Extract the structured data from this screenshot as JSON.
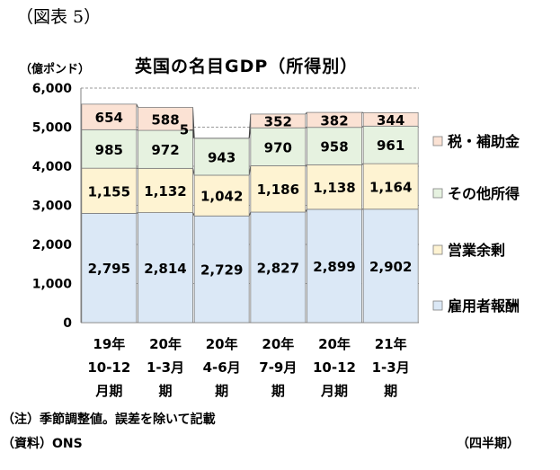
{
  "header": {
    "figure_label": "（図表 5）",
    "unit": "（億ポンド）",
    "title": "英国の名目GDP（所得別）"
  },
  "footer": {
    "note": "（注）季節調整値。誤差を除いて記載",
    "source": "（資料）ONS",
    "period": "（四半期）"
  },
  "chart_data": {
    "type": "bar",
    "stacked": true,
    "title": "英国の名目GDP（所得別）",
    "ylabel": "（億ポンド）",
    "ylim": [
      0,
      6000
    ],
    "yticks": [
      "0",
      "1,000",
      "2,000",
      "3,000",
      "4,000",
      "5,000",
      "6,000"
    ],
    "grid": true,
    "legend_position": "right",
    "categories": [
      [
        "19年",
        "10-12",
        "月期"
      ],
      [
        "20年",
        "1-3月",
        "期"
      ],
      [
        "20年",
        "4-6月",
        "期"
      ],
      [
        "20年",
        "7-9月",
        "期"
      ],
      [
        "20年",
        "10-12",
        "月期"
      ],
      [
        "21年",
        "1-3月",
        "期"
      ]
    ],
    "series": [
      {
        "name": "雇用者報酬",
        "color": "#dbe8f6",
        "values": [
          2795,
          2814,
          2729,
          2827,
          2899,
          2902
        ],
        "labels": [
          "2,795",
          "2,814",
          "2,729",
          "2,827",
          "2,899",
          "2,902"
        ]
      },
      {
        "name": "営業余剰",
        "color": "#fef3d2",
        "values": [
          1155,
          1132,
          1042,
          1186,
          1138,
          1164
        ],
        "labels": [
          "1,155",
          "1,132",
          "1,042",
          "1,186",
          "1,138",
          "1,164"
        ]
      },
      {
        "name": "その他所得",
        "color": "#e6f2e0",
        "values": [
          985,
          972,
          943,
          970,
          958,
          961
        ],
        "labels": [
          "985",
          "972",
          "943",
          "970",
          "958",
          "961"
        ]
      },
      {
        "name": "税・補助金",
        "color": "#fbe2d4",
        "values": [
          654,
          588,
          5,
          352,
          382,
          344
        ],
        "labels": [
          "654",
          "588",
          "5",
          "352",
          "382",
          "344"
        ]
      }
    ]
  }
}
